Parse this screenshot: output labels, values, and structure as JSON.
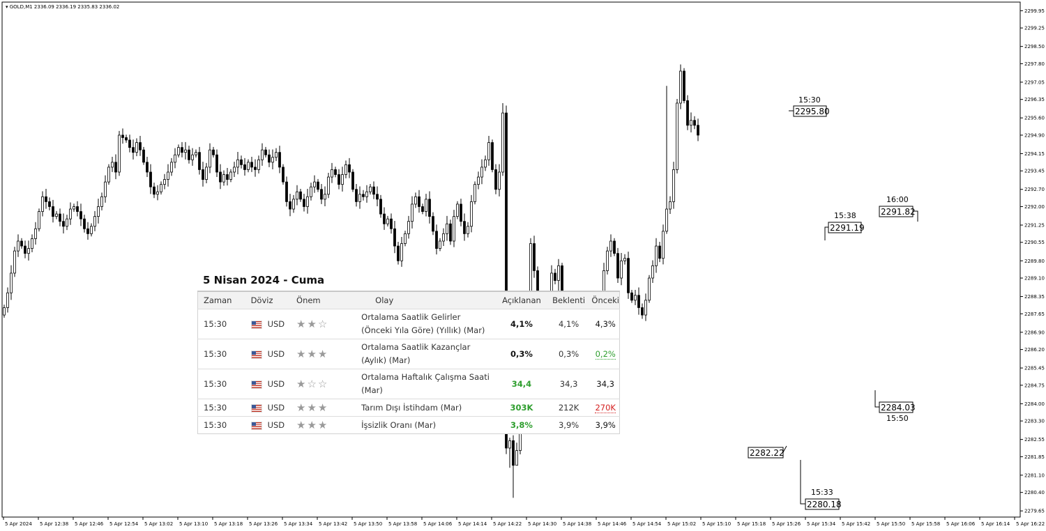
{
  "header": {
    "symbol": "GOLD,M1",
    "ohlc": "2336.09 2336.19 2335.83 2336.02"
  },
  "chart_data": {
    "type": "candlestick",
    "ylim": [
      2279.4,
      2300.3
    ],
    "y_ticks": [
      "2299.95",
      "2299.25",
      "2298.50",
      "2297.80",
      "2297.05",
      "2296.35",
      "2295.60",
      "2294.90",
      "2294.15",
      "2293.45",
      "2292.70",
      "2292.00",
      "2291.25",
      "2290.55",
      "2289.80",
      "2289.10",
      "2288.35",
      "2287.65",
      "2286.90",
      "2286.20",
      "2285.45",
      "2284.75",
      "2284.00",
      "2283.30",
      "2282.55",
      "2281.85",
      "2281.10",
      "2280.40",
      "2279.65"
    ],
    "x_ticks": [
      "5 Apr 2024",
      "5 Apr 12:38",
      "5 Apr 12:46",
      "5 Apr 12:54",
      "5 Apr 13:02",
      "5 Apr 13:10",
      "5 Apr 13:18",
      "5 Apr 13:26",
      "5 Apr 13:34",
      "5 Apr 13:42",
      "5 Apr 13:50",
      "5 Apr 13:58",
      "5 Apr 14:06",
      "5 Apr 14:14",
      "5 Apr 14:22",
      "5 Apr 14:30",
      "5 Apr 14:38",
      "5 Apr 14:46",
      "5 Apr 14:54",
      "5 Apr 15:02",
      "5 Apr 15:10",
      "5 Apr 15:18",
      "5 Apr 15:26",
      "5 Apr 15:34",
      "5 Apr 15:42",
      "5 Apr 15:50",
      "5 Apr 15:58",
      "5 Apr 16:06",
      "5 Apr 16:14",
      "5 Apr 16:22"
    ],
    "candles": {
      "start_time": "12:30",
      "interval_min": 1,
      "closes": [
        2287.9,
        2288.5,
        2289.3,
        2290.2,
        2290.6,
        2290.4,
        2290.1,
        2290.3,
        2290.7,
        2291.1,
        2291.8,
        2292.4,
        2292.2,
        2292.0,
        2291.6,
        2291.7,
        2291.4,
        2291.2,
        2291.5,
        2291.9,
        2292.0,
        2291.8,
        2291.5,
        2291.1,
        2290.9,
        2291.2,
        2291.6,
        2292.0,
        2292.4,
        2293.0,
        2293.6,
        2293.8,
        2293.4,
        2294.9,
        2294.8,
        2294.7,
        2294.4,
        2294.2,
        2294.6,
        2294.3,
        2293.8,
        2293.4,
        2292.8,
        2292.5,
        2292.6,
        2292.9,
        2293.1,
        2293.4,
        2293.8,
        2294.1,
        2294.4,
        2294.2,
        2294.3,
        2293.9,
        2294.1,
        2294.2,
        2293.5,
        2293.1,
        2293.6,
        2294.3,
        2294.1,
        2293.4,
        2293.0,
        2293.3,
        2293.1,
        2293.4,
        2293.6,
        2293.9,
        2293.7,
        2293.5,
        2293.8,
        2293.6,
        2293.5,
        2293.9,
        2294.3,
        2294.1,
        2293.8,
        2294.0,
        2294.2,
        2293.6,
        2293.0,
        2292.2,
        2291.9,
        2292.3,
        2292.6,
        2292.3,
        2292.0,
        2292.4,
        2292.8,
        2293.0,
        2292.7,
        2292.3,
        2292.5,
        2293.2,
        2293.5,
        2293.3,
        2292.9,
        2293.3,
        2293.7,
        2293.4,
        2292.7,
        2292.2,
        2292.5,
        2292.4,
        2292.6,
        2292.8,
        2292.5,
        2292.3,
        2291.7,
        2291.3,
        2291.5,
        2291.1,
        2290.4,
        2289.8,
        2290.5,
        2290.9,
        2291.4,
        2292.1,
        2292.4,
        2292.0,
        2291.8,
        2292.3,
        2291.6,
        2291.0,
        2290.3,
        2290.6,
        2290.9,
        2291.3,
        2290.6,
        2291.6,
        2292.1,
        2291.4,
        2290.9,
        2291.2,
        2292.2,
        2292.9,
        2293.2,
        2293.6,
        2293.9,
        2294.6,
        2293.5,
        2292.7,
        2293.4,
        2295.8,
        2282.2,
        2282.5,
        2281.5,
        2282.1,
        2286.0,
        2286.6,
        2288.0,
        2290.5,
        2289.4,
        2287.3,
        2285.4,
        2286.8,
        2288.3,
        2289.3,
        2289.0,
        2289.6,
        2288.2,
        2287.1,
        2285.1,
        2284.5,
        2284.7,
        2284.4,
        2285.3,
        2286.3,
        2285.9,
        2285.4,
        2286.4,
        2287.8,
        2289.4,
        2290.2,
        2290.6,
        2290.1,
        2289.1,
        2289.8,
        2289.9,
        2288.5,
        2288.2,
        2288.4,
        2287.9,
        2287.6,
        2288.2,
        2289.1,
        2289.6,
        2290.4,
        2289.9,
        2291.0,
        2291.9,
        2292.2,
        2293.5,
        2296.2,
        2297.5,
        2296.3,
        2295.3,
        2295.5,
        2295.3,
        2294.9
      ],
      "extra_high": {
        "143": 2296.2,
        "144": 2296.1,
        "190": 2296.9
      },
      "extra_low": {
        "145": 2281.4,
        "146": 2280.18,
        "147": 2281.5,
        "159": 2285.4,
        "161": 2284.03
      }
    },
    "annotations": [
      {
        "time": "15:30",
        "price": "2295.80"
      },
      {
        "price": "2282.22"
      },
      {
        "time": "15:33",
        "price": "2280.18"
      },
      {
        "time": "15:38",
        "price": "2291.19"
      },
      {
        "time": "16:00",
        "price": "2291.82"
      },
      {
        "time": "15:50",
        "price": "2284.03"
      }
    ]
  },
  "calendar": {
    "title": "5 Nisan 2024 - Cuma",
    "headers": [
      "Zaman",
      "Döviz",
      "Önem",
      "Olay",
      "Açıklanan",
      "Beklenti",
      "Önceki"
    ],
    "rows": [
      {
        "time": "15:30",
        "currency": "USD",
        "stars": "★★☆",
        "event_line1": "Ortalama Saatlik Gelirler",
        "event_line2": "(Önceki Yıla Göre) (Yıllık) (Mar)",
        "actual": "4,1%",
        "forecast": "4,1%",
        "previous": "4,3%"
      },
      {
        "time": "15:30",
        "currency": "USD",
        "stars": "★★★",
        "event_line1": "Ortalama Saatlik Kazançlar",
        "event_line2": "(Aylık) (Mar)",
        "actual": "0,3%",
        "forecast": "0,3%",
        "previous": "0,2%"
      },
      {
        "time": "15:30",
        "currency": "USD",
        "stars": "★☆☆",
        "event_line1": "Ortalama Haftalık Çalışma Saati",
        "event_line2": "(Mar)",
        "actual": "34,4",
        "forecast": "34,3",
        "previous": "34,3"
      },
      {
        "time": "15:30",
        "currency": "USD",
        "stars": "★★★",
        "event_line1": "Tarım Dışı İstihdam (Mar)",
        "event_line2": "",
        "actual": "303K",
        "forecast": "212K",
        "previous": "270K"
      },
      {
        "time": "15:30",
        "currency": "USD",
        "stars": "★★★",
        "event_line1": "İşsizlik Oranı (Mar)",
        "event_line2": "",
        "actual": "3,8%",
        "forecast": "3,9%",
        "previous": "3,9%"
      }
    ]
  }
}
